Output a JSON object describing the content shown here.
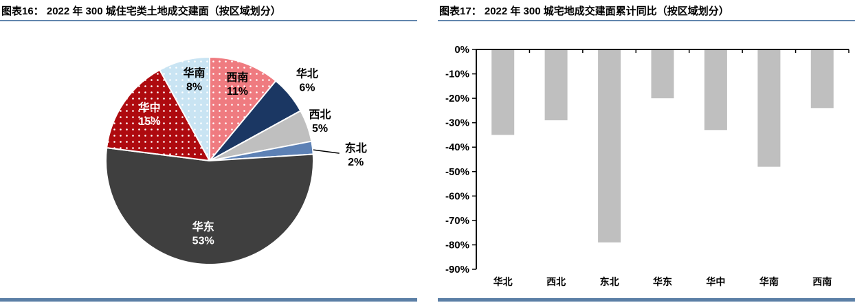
{
  "panels": [
    {
      "title": "图表16： 2022 年 300 城住宅类土地成交建面（按区域划分）"
    },
    {
      "title": "图表17： 2022 年 300 城宅地成交建面累计同比（按区域划分）"
    }
  ],
  "accent": {
    "title_rule_color": "#6286AD",
    "bottom_rule_color": "#5B7FA6"
  },
  "chart_data": [
    {
      "type": "pie",
      "title": "图表16： 2022 年 300 城住宅类土地成交建面（按区域划分）",
      "unit": "%",
      "start_angle_deg": 0,
      "clockwise": true,
      "slice_border_color": "#ffffff",
      "slices": [
        {
          "name": "西南",
          "value": 11,
          "pct_label": "11%",
          "color": "#EF7B80",
          "dotted": true,
          "label_color": "#000000",
          "placement": "inside",
          "rf": 0.79
        },
        {
          "name": "华北",
          "value": 6,
          "pct_label": "6%",
          "color": "#1B3763",
          "dotted": false,
          "label_color": "#000000",
          "placement": "outside",
          "rf": 1.22
        },
        {
          "name": "西北",
          "value": 5,
          "pct_label": "5%",
          "color": "#BFBFBF",
          "dotted": false,
          "label_color": "#000000",
          "placement": "outside",
          "rf": 1.13
        },
        {
          "name": "东北",
          "value": 2,
          "pct_label": "2%",
          "color": "#5D81B5",
          "dotted": false,
          "label_color": "#000000",
          "placement": "outside",
          "rf": 1.42,
          "dy": 18,
          "leader": true
        },
        {
          "name": "华东",
          "value": 53,
          "pct_label": "53%",
          "color": "#3F3F3F",
          "dotted": false,
          "label_color": "#ffffff",
          "placement": "inside",
          "rf": 0.7,
          "dx": -6
        },
        {
          "name": "华中",
          "value": 15,
          "pct_label": "15%",
          "color": "#AE0A0F",
          "dotted": true,
          "label_color": "#ffffff",
          "placement": "inside",
          "rf": 0.74,
          "dx": 5,
          "dy": -5
        },
        {
          "name": "华南",
          "value": 8,
          "pct_label": "8%",
          "color": "#C9E4F3",
          "dotted": true,
          "label_color": "#000000",
          "placement": "inside",
          "rf": 0.81,
          "dx": 8
        }
      ]
    },
    {
      "type": "bar",
      "title": "图表17： 2022 年 300 城宅地成交建面累计同比（按区域划分）",
      "categories": [
        "华北",
        "西北",
        "东北",
        "华东",
        "华中",
        "华南",
        "西南"
      ],
      "values": [
        -35,
        -29,
        -79,
        -20,
        -33,
        -48,
        -24
      ],
      "unit": "%",
      "bar_color": "#BFBFBF",
      "axis_color": "#000000",
      "ylim": [
        -90,
        0
      ],
      "ytick_step": 10,
      "ytick_labels": [
        "0%",
        "-10%",
        "-20%",
        "-30%",
        "-40%",
        "-50%",
        "-60%",
        "-70%",
        "-80%",
        "-90%"
      ],
      "xlabel": "",
      "ylabel": "",
      "grid": false,
      "legend": null
    }
  ]
}
